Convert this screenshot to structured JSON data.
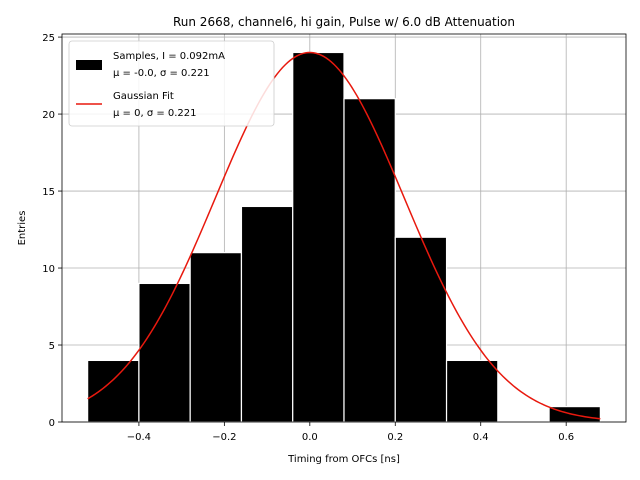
{
  "chart_data": {
    "type": "bar",
    "title": "Run 2668, channel6, hi gain, Pulse w/ 6.0 dB Attenuation",
    "xlabel": "Timing from OFCs [ns]",
    "ylabel": "Entries",
    "xlim": [
      -0.58,
      0.74
    ],
    "ylim": [
      0,
      25.2
    ],
    "xticks": [
      -0.4,
      -0.2,
      0.0,
      0.2,
      0.4,
      0.6
    ],
    "xtick_labels": [
      "−0.4",
      "−0.2",
      "0.0",
      "0.2",
      "0.4",
      "0.6"
    ],
    "yticks": [
      0,
      5,
      10,
      15,
      20,
      25
    ],
    "ytick_labels": [
      "0",
      "5",
      "10",
      "15",
      "20",
      "25"
    ],
    "grid": true,
    "legend_position": "top-left",
    "bins": [
      {
        "x0": -0.52,
        "x1": -0.4,
        "count": 4
      },
      {
        "x0": -0.4,
        "x1": -0.28,
        "count": 9
      },
      {
        "x0": -0.28,
        "x1": -0.16,
        "count": 11
      },
      {
        "x0": -0.16,
        "x1": -0.04,
        "count": 14
      },
      {
        "x0": -0.04,
        "x1": 0.08,
        "count": 24
      },
      {
        "x0": 0.08,
        "x1": 0.2,
        "count": 21
      },
      {
        "x0": 0.2,
        "x1": 0.32,
        "count": 12
      },
      {
        "x0": 0.32,
        "x1": 0.44,
        "count": 4
      },
      {
        "x0": 0.44,
        "x1": 0.56,
        "count": 0
      },
      {
        "x0": 0.56,
        "x1": 0.68,
        "count": 1
      }
    ],
    "fit": {
      "mu": 0.0,
      "sigma": 0.221,
      "amplitude": 24.0,
      "x_range": [
        -0.52,
        0.68
      ]
    },
    "legend": [
      {
        "line1": "Samples, I = 0.092mA",
        "line2": "μ = -0.0, σ = 0.221"
      },
      {
        "line1": "Gaussian Fit",
        "line2": "μ = 0, σ = 0.221"
      }
    ],
    "colors": {
      "bars": "#000000",
      "bar_edge": "#ffffff",
      "fit_line": "#e8190e",
      "grid": "#b0b0b0"
    }
  }
}
